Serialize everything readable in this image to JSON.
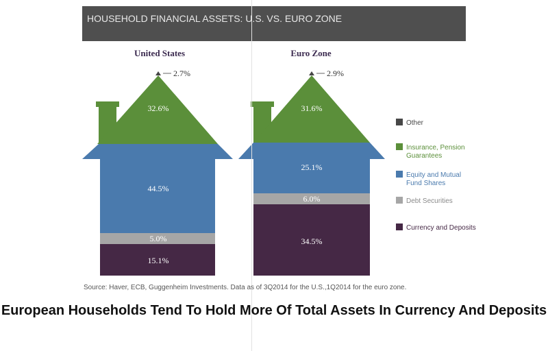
{
  "header": {
    "title": "HOUSEHOLD FINANCIAL ASSETS: U.S. VS. EURO ZONE"
  },
  "chart_data": {
    "type": "stacked-house",
    "categories": [
      "United States",
      "Euro Zone"
    ],
    "series": [
      {
        "name": "Other",
        "values": [
          2.7,
          2.9
        ],
        "color": "#474747"
      },
      {
        "name": "Insurance, Pension Guarantees",
        "values": [
          32.6,
          31.6
        ],
        "color": "#5b8f3a"
      },
      {
        "name": "Equity and Mutual Fund Shares",
        "values": [
          44.5,
          25.1
        ],
        "color": "#4a7aad"
      },
      {
        "name": "Debt Securities",
        "values": [
          5.0,
          6.0
        ],
        "color": "#a6a6a6"
      },
      {
        "name": "Currency and Deposits",
        "values": [
          15.1,
          34.5
        ],
        "color": "#452845"
      }
    ],
    "value_labels": {
      "us": {
        "other": "2.7%",
        "insurance": "32.6%",
        "equity": "44.5%",
        "debt": "5.0%",
        "currency": "15.1%"
      },
      "ez": {
        "other": "2.9%",
        "insurance": "31.6%",
        "equity": "25.1%",
        "debt": "6.0%",
        "currency": "34.5%"
      }
    },
    "legend": {
      "position": "right",
      "items": [
        {
          "lines": [
            "Other"
          ],
          "color": "#474747"
        },
        {
          "lines": [
            "Insurance, Pension",
            "Guarantees"
          ],
          "color": "#5b8f3a"
        },
        {
          "lines": [
            "Equity and Mutual",
            "Fund Shares"
          ],
          "color": "#4a7aad"
        },
        {
          "lines": [
            "Debt Securities"
          ],
          "color": "#a6a6a6"
        },
        {
          "lines": [
            "Currency and Deposits"
          ],
          "color": "#452845"
        }
      ]
    }
  },
  "source": "Source: Haver, ECB, Guggenheim Investments. Data as of 3Q2014 for the U.S.,1Q2014 for the euro zone.",
  "headline": "European Households Tend To Hold More Of Total Assets In Currency And Deposits"
}
